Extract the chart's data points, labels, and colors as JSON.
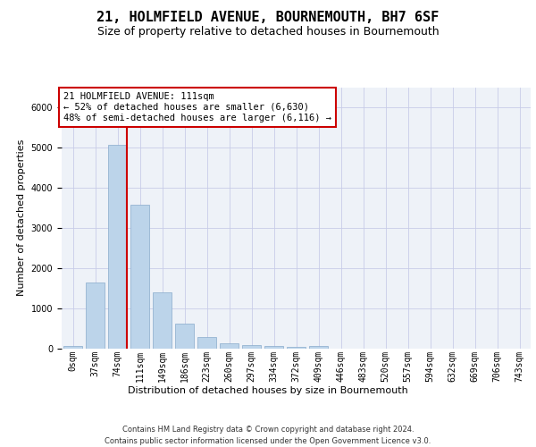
{
  "title": "21, HOLMFIELD AVENUE, BOURNEMOUTH, BH7 6SF",
  "subtitle": "Size of property relative to detached houses in Bournemouth",
  "xlabel": "Distribution of detached houses by size in Bournemouth",
  "ylabel": "Number of detached properties",
  "footer_line1": "Contains HM Land Registry data © Crown copyright and database right 2024.",
  "footer_line2": "Contains public sector information licensed under the Open Government Licence v3.0.",
  "bar_labels": [
    "0sqm",
    "37sqm",
    "74sqm",
    "111sqm",
    "149sqm",
    "186sqm",
    "223sqm",
    "260sqm",
    "297sqm",
    "334sqm",
    "372sqm",
    "409sqm",
    "446sqm",
    "483sqm",
    "520sqm",
    "557sqm",
    "594sqm",
    "632sqm",
    "669sqm",
    "706sqm",
    "743sqm"
  ],
  "bar_values": [
    75,
    1650,
    5060,
    3580,
    1400,
    620,
    290,
    130,
    100,
    75,
    50,
    75,
    0,
    0,
    0,
    0,
    0,
    0,
    0,
    0,
    0
  ],
  "bar_color": "#bcd4ea",
  "bar_edge_color": "#88aacc",
  "grid_color": "#c8cce8",
  "background_color": "#eef2f8",
  "vline_color": "#cc0000",
  "annotation_line1": "21 HOLMFIELD AVENUE: 111sqm",
  "annotation_line2": "← 52% of detached houses are smaller (6,630)",
  "annotation_line3": "48% of semi-detached houses are larger (6,116) →",
  "annotation_box_color": "#ffffff",
  "annotation_border_color": "#cc0000",
  "ylim_max": 6500,
  "title_fontsize": 11,
  "subtitle_fontsize": 9,
  "ylabel_fontsize": 8,
  "tick_fontsize": 7,
  "annotation_fontsize": 7.5,
  "footer_fontsize": 6
}
